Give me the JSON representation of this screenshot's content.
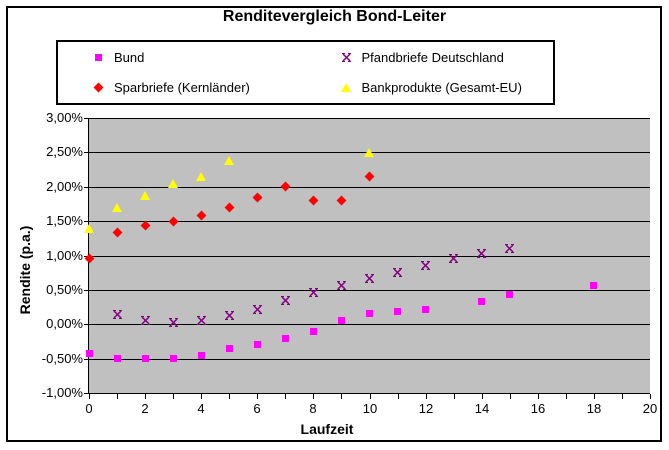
{
  "chart_data": {
    "type": "scatter",
    "title": "Renditevergleich Bond-Leiter",
    "xlabel": "Laufzeit",
    "ylabel": "Rendite (p.a.)",
    "xlim": [
      0,
      20
    ],
    "ylim": [
      -1.0,
      3.0
    ],
    "y_unit": "percent",
    "y_grid_step": 0.5,
    "x_tick_step": 1,
    "x_label_step": 2,
    "grid": "horizontal-only",
    "legend_position": "top",
    "plot_bg_color": "#C0C0C0",
    "y_tick_labels": [
      "3,00%",
      "2,50%",
      "2,00%",
      "1,50%",
      "1,00%",
      "0,50%",
      "0,00%",
      "-0,50%",
      "-1,00%"
    ],
    "x_tick_labels": [
      "0",
      "2",
      "4",
      "6",
      "8",
      "10",
      "12",
      "14",
      "16",
      "18",
      "20"
    ],
    "series": [
      {
        "name": "Bund",
        "marker": "square",
        "color": "#FF00FF",
        "points": [
          [
            0,
            -0.43
          ],
          [
            1,
            -0.5
          ],
          [
            2,
            -0.5
          ],
          [
            3,
            -0.5
          ],
          [
            4,
            -0.45
          ],
          [
            5,
            -0.35
          ],
          [
            6,
            -0.3
          ],
          [
            7,
            -0.2
          ],
          [
            8,
            -0.1
          ],
          [
            9,
            0.05
          ],
          [
            10,
            0.15
          ],
          [
            11,
            0.18
          ],
          [
            12,
            0.22
          ],
          [
            14,
            0.33
          ],
          [
            15,
            0.44
          ],
          [
            18,
            0.57
          ]
        ]
      },
      {
        "name": "Pfandbriefe Deutschland",
        "marker": "x",
        "color": "#800080",
        "points": [
          [
            1,
            0.14
          ],
          [
            2,
            0.05
          ],
          [
            3,
            0.02
          ],
          [
            4,
            0.06
          ],
          [
            5,
            0.13
          ],
          [
            6,
            0.22
          ],
          [
            7,
            0.34
          ],
          [
            8,
            0.46
          ],
          [
            9,
            0.57
          ],
          [
            10,
            0.66
          ],
          [
            11,
            0.76
          ],
          [
            12,
            0.85
          ],
          [
            13,
            0.95
          ],
          [
            14,
            1.03
          ],
          [
            15,
            1.1
          ]
        ]
      },
      {
        "name": "Sparbriefe (Kernländer)",
        "marker": "diamond",
        "color": "#FF0000",
        "points": [
          [
            0,
            0.95
          ],
          [
            1,
            1.33
          ],
          [
            2,
            1.44
          ],
          [
            3,
            1.5
          ],
          [
            4,
            1.58
          ],
          [
            5,
            1.7
          ],
          [
            6,
            1.85
          ],
          [
            7,
            2.0
          ],
          [
            8,
            1.8
          ],
          [
            9,
            1.8
          ],
          [
            10,
            2.15
          ]
        ]
      },
      {
        "name": "Bankprodukte (Gesamt-EU)",
        "marker": "triangle",
        "color": "#FFFF00",
        "points": [
          [
            0,
            1.4
          ],
          [
            1,
            1.7
          ],
          [
            2,
            1.88
          ],
          [
            3,
            2.05
          ],
          [
            4,
            2.15
          ],
          [
            5,
            2.38
          ],
          [
            10,
            2.5
          ]
        ]
      }
    ]
  }
}
